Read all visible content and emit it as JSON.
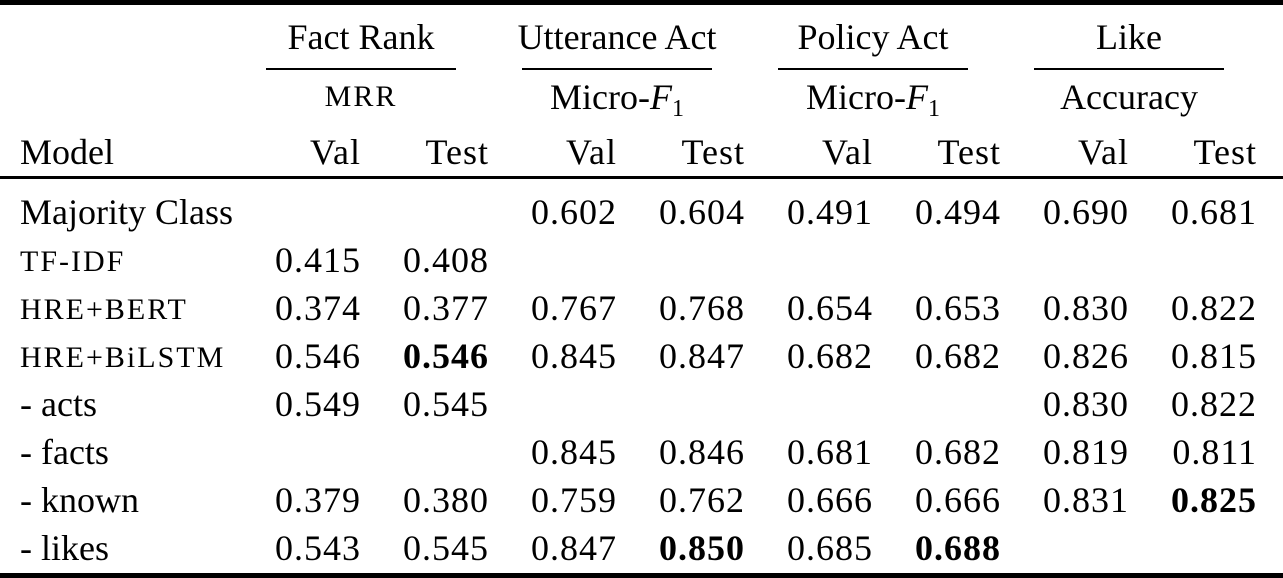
{
  "page": {
    "background_color": "#ffffff",
    "text_color": "#000000",
    "rule_color": "#000000"
  },
  "table": {
    "model_header": "Model",
    "subheaders": [
      "Val",
      "Test"
    ],
    "groups": [
      {
        "label": "Fact Rank",
        "metric_prefix": "MRR",
        "metric_smallcaps": true
      },
      {
        "label": "Utterance Act",
        "metric_prefix": "Micro-",
        "metric_var": "F",
        "metric_sub": "1"
      },
      {
        "label": "Policy Act",
        "metric_prefix": "Micro-",
        "metric_var": "F",
        "metric_sub": "1"
      },
      {
        "label": "Like",
        "metric_prefix": "Accuracy"
      }
    ],
    "rows": [
      {
        "model": "Majority Class",
        "smallcaps": false,
        "values": [
          "",
          "",
          "0.602",
          "0.604",
          "0.491",
          "0.494",
          "0.690",
          "0.681"
        ],
        "bold": []
      },
      {
        "model": "TF-IDF",
        "smallcaps": true,
        "values": [
          "0.415",
          "0.408",
          "",
          "",
          "",
          "",
          "",
          ""
        ],
        "bold": []
      },
      {
        "model": "HRE+BERT",
        "smallcaps": true,
        "values": [
          "0.374",
          "0.377",
          "0.767",
          "0.768",
          "0.654",
          "0.653",
          "0.830",
          "0.822"
        ],
        "bold": []
      },
      {
        "model": "HRE+BiLSTM",
        "smallcaps": true,
        "values": [
          "0.546",
          "0.546",
          "0.845",
          "0.847",
          "0.682",
          "0.682",
          "0.826",
          "0.815"
        ],
        "bold": [
          1
        ]
      },
      {
        "model": "- acts",
        "smallcaps": false,
        "values": [
          "0.549",
          "0.545",
          "",
          "",
          "",
          "",
          "0.830",
          "0.822"
        ],
        "bold": []
      },
      {
        "model": "- facts",
        "smallcaps": false,
        "values": [
          "",
          "",
          "0.845",
          "0.846",
          "0.681",
          "0.682",
          "0.819",
          "0.811"
        ],
        "bold": []
      },
      {
        "model": "- known",
        "smallcaps": false,
        "values": [
          "0.379",
          "0.380",
          "0.759",
          "0.762",
          "0.666",
          "0.666",
          "0.831",
          "0.825"
        ],
        "bold": [
          7
        ]
      },
      {
        "model": "- likes",
        "smallcaps": false,
        "values": [
          "0.543",
          "0.545",
          "0.847",
          "0.850",
          "0.685",
          "0.688",
          "",
          ""
        ],
        "bold": [
          3,
          5
        ]
      }
    ]
  }
}
